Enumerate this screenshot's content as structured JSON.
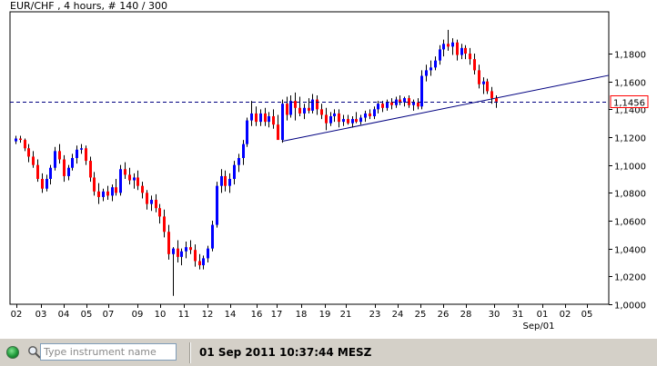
{
  "chart_title": "EUR/CHF , 4 hours, # 140 / 300",
  "chart_data": {
    "type": "candlestick",
    "title": "EUR/CHF , 4 hours, # 140 / 300",
    "ylim": [
      1.0,
      1.21
    ],
    "y_ticks": [
      "1,0000",
      "1,0200",
      "1,0400",
      "1,0600",
      "1,0800",
      "1,1000",
      "1,1200",
      "1,1400",
      "1,1600",
      "1,1800"
    ],
    "y_tick_values": [
      1.0,
      1.02,
      1.04,
      1.06,
      1.08,
      1.1,
      1.12,
      1.14,
      1.16,
      1.18
    ],
    "x_ticks": [
      "02",
      "03",
      "04",
      "05",
      "07",
      "09",
      "10",
      "11",
      "12",
      "14",
      "16",
      "17",
      "18",
      "19",
      "21",
      "23",
      "24",
      "25",
      "26",
      "28",
      "30",
      "31",
      "01",
      "02",
      "05"
    ],
    "x_extra_label": "Sep/01",
    "current_price": "1,1456",
    "current_price_value": 1.1456,
    "bars": [
      [
        1.117,
        1.121,
        1.115,
        1.119
      ],
      [
        1.119,
        1.121,
        1.116,
        1.118
      ],
      [
        1.118,
        1.119,
        1.11,
        1.112
      ],
      [
        1.112,
        1.115,
        1.102,
        1.106
      ],
      [
        1.106,
        1.11,
        1.098,
        1.1
      ],
      [
        1.1,
        1.104,
        1.088,
        1.09
      ],
      [
        1.09,
        1.094,
        1.08,
        1.083
      ],
      [
        1.083,
        1.093,
        1.081,
        1.09
      ],
      [
        1.09,
        1.1,
        1.086,
        1.098
      ],
      [
        1.098,
        1.113,
        1.096,
        1.11
      ],
      [
        1.11,
        1.115,
        1.101,
        1.104
      ],
      [
        1.104,
        1.107,
        1.088,
        1.092
      ],
      [
        1.092,
        1.1,
        1.089,
        1.098
      ],
      [
        1.098,
        1.108,
        1.096,
        1.105
      ],
      [
        1.105,
        1.114,
        1.101,
        1.111
      ],
      [
        1.111,
        1.115,
        1.108,
        1.112
      ],
      [
        1.112,
        1.114,
        1.1,
        1.103
      ],
      [
        1.103,
        1.106,
        1.088,
        1.091
      ],
      [
        1.091,
        1.095,
        1.078,
        1.081
      ],
      [
        1.081,
        1.087,
        1.072,
        1.077
      ],
      [
        1.077,
        1.083,
        1.074,
        1.081
      ],
      [
        1.081,
        1.085,
        1.075,
        1.078
      ],
      [
        1.078,
        1.086,
        1.074,
        1.084
      ],
      [
        1.084,
        1.09,
        1.078,
        1.08
      ],
      [
        1.08,
        1.1,
        1.078,
        1.097
      ],
      [
        1.097,
        1.102,
        1.09,
        1.093
      ],
      [
        1.093,
        1.098,
        1.086,
        1.089
      ],
      [
        1.089,
        1.094,
        1.083,
        1.091
      ],
      [
        1.091,
        1.096,
        1.082,
        1.085
      ],
      [
        1.085,
        1.088,
        1.076,
        1.08
      ],
      [
        1.08,
        1.082,
        1.068,
        1.072
      ],
      [
        1.072,
        1.078,
        1.067,
        1.075
      ],
      [
        1.075,
        1.079,
        1.066,
        1.069
      ],
      [
        1.069,
        1.072,
        1.058,
        1.063
      ],
      [
        1.063,
        1.068,
        1.048,
        1.052
      ],
      [
        1.052,
        1.057,
        1.032,
        1.036
      ],
      [
        1.036,
        1.041,
        1.006,
        1.04
      ],
      [
        1.04,
        1.046,
        1.03,
        1.034
      ],
      [
        1.034,
        1.04,
        1.028,
        1.038
      ],
      [
        1.038,
        1.045,
        1.033,
        1.041
      ],
      [
        1.041,
        1.046,
        1.036,
        1.039
      ],
      [
        1.039,
        1.043,
        1.027,
        1.031
      ],
      [
        1.031,
        1.036,
        1.025,
        1.028
      ],
      [
        1.028,
        1.035,
        1.025,
        1.033
      ],
      [
        1.033,
        1.042,
        1.03,
        1.04
      ],
      [
        1.04,
        1.06,
        1.038,
        1.057
      ],
      [
        1.057,
        1.088,
        1.055,
        1.085
      ],
      [
        1.085,
        1.097,
        1.08,
        1.092
      ],
      [
        1.092,
        1.096,
        1.081,
        1.085
      ],
      [
        1.085,
        1.094,
        1.08,
        1.09
      ],
      [
        1.09,
        1.103,
        1.086,
        1.1
      ],
      [
        1.1,
        1.108,
        1.095,
        1.105
      ],
      [
        1.105,
        1.118,
        1.1,
        1.115
      ],
      [
        1.115,
        1.134,
        1.113,
        1.132
      ],
      [
        1.132,
        1.146,
        1.128,
        1.137
      ],
      [
        1.137,
        1.142,
        1.128,
        1.131
      ],
      [
        1.131,
        1.14,
        1.128,
        1.137
      ],
      [
        1.137,
        1.141,
        1.128,
        1.131
      ],
      [
        1.131,
        1.138,
        1.127,
        1.135
      ],
      [
        1.135,
        1.14,
        1.126,
        1.129
      ],
      [
        1.129,
        1.136,
        1.123,
        1.118
      ],
      [
        1.118,
        1.147,
        1.116,
        1.144
      ],
      [
        1.144,
        1.149,
        1.132,
        1.136
      ],
      [
        1.136,
        1.15,
        1.134,
        1.146
      ],
      [
        1.146,
        1.152,
        1.132,
        1.141
      ],
      [
        1.141,
        1.149,
        1.135,
        1.137
      ],
      [
        1.137,
        1.144,
        1.133,
        1.141
      ],
      [
        1.141,
        1.148,
        1.137,
        1.139
      ],
      [
        1.139,
        1.151,
        1.137,
        1.147
      ],
      [
        1.147,
        1.15,
        1.136,
        1.14
      ],
      [
        1.14,
        1.144,
        1.133,
        1.136
      ],
      [
        1.136,
        1.141,
        1.125,
        1.13
      ],
      [
        1.13,
        1.138,
        1.128,
        1.135
      ],
      [
        1.135,
        1.14,
        1.131,
        1.137
      ],
      [
        1.137,
        1.14,
        1.127,
        1.131
      ],
      [
        1.131,
        1.136,
        1.128,
        1.133
      ],
      [
        1.133,
        1.136,
        1.129,
        1.13
      ],
      [
        1.13,
        1.135,
        1.127,
        1.133
      ],
      [
        1.133,
        1.138,
        1.13,
        1.131
      ],
      [
        1.131,
        1.136,
        1.129,
        1.134
      ],
      [
        1.134,
        1.139,
        1.131,
        1.137
      ],
      [
        1.137,
        1.14,
        1.133,
        1.135
      ],
      [
        1.135,
        1.142,
        1.133,
        1.14
      ],
      [
        1.14,
        1.146,
        1.137,
        1.144
      ],
      [
        1.144,
        1.146,
        1.138,
        1.141
      ],
      [
        1.141,
        1.147,
        1.139,
        1.145
      ],
      [
        1.145,
        1.148,
        1.14,
        1.143
      ],
      [
        1.143,
        1.149,
        1.141,
        1.147
      ],
      [
        1.147,
        1.15,
        1.143,
        1.145
      ],
      [
        1.145,
        1.149,
        1.142,
        1.148
      ],
      [
        1.148,
        1.15,
        1.141,
        1.143
      ],
      [
        1.143,
        1.147,
        1.139,
        1.145
      ],
      [
        1.145,
        1.148,
        1.14,
        1.142
      ],
      [
        1.142,
        1.168,
        1.14,
        1.164
      ],
      [
        1.164,
        1.172,
        1.16,
        1.168
      ],
      [
        1.168,
        1.175,
        1.164,
        1.17
      ],
      [
        1.17,
        1.178,
        1.168,
        1.175
      ],
      [
        1.175,
        1.186,
        1.172,
        1.183
      ],
      [
        1.183,
        1.19,
        1.178,
        1.187
      ],
      [
        1.187,
        1.197,
        1.182,
        1.185
      ],
      [
        1.185,
        1.191,
        1.179,
        1.188
      ],
      [
        1.188,
        1.19,
        1.175,
        1.179
      ],
      [
        1.179,
        1.187,
        1.176,
        1.184
      ],
      [
        1.184,
        1.186,
        1.176,
        1.18
      ],
      [
        1.18,
        1.184,
        1.172,
        1.176
      ],
      [
        1.176,
        1.18,
        1.165,
        1.168
      ],
      [
        1.168,
        1.172,
        1.155,
        1.158
      ],
      [
        1.158,
        1.163,
        1.151,
        1.16
      ],
      [
        1.16,
        1.162,
        1.151,
        1.153
      ],
      [
        1.153,
        1.156,
        1.144,
        1.148
      ],
      [
        1.148,
        1.15,
        1.141,
        1.1456
      ]
    ],
    "trendline": {
      "x0_bar": 61,
      "y0": 1.117,
      "x1_bar": 121,
      "y1": 1.155
    },
    "colors": {
      "up": "#0000ff",
      "down": "#ff0000",
      "trendline": "#000080",
      "price_line": "#000080"
    }
  },
  "statusbar": {
    "search_placeholder": "Type instrument name",
    "datetime": "01 Sep 2011 10:37:44 MESZ"
  }
}
